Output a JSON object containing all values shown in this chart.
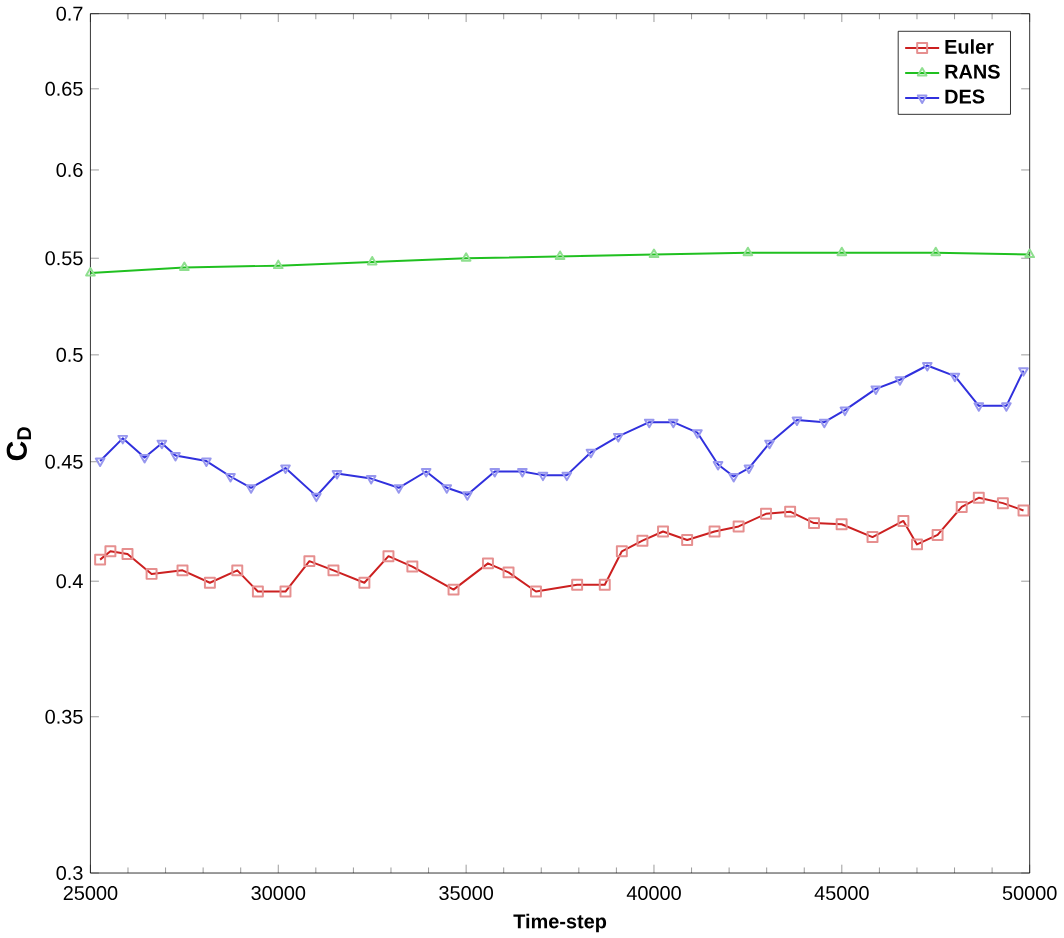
{
  "chart_data": {
    "type": "line",
    "xlabel": "Time-step",
    "ylabel": "**C$_{D}$**",
    "log": "y",
    "xlim": [
      25000,
      50000
    ],
    "ylim": [
      0.3,
      0.7
    ],
    "xticks": [
      25000,
      30000,
      35000,
      40000,
      45000,
      50000
    ],
    "yticks": [
      0.3,
      0.35,
      0.4,
      0.45,
      0.5,
      0.55,
      0.6,
      0.65,
      0.7
    ],
    "legend": "top right",
    "grid": false,
    "series": [
      {
        "name": "Euler",
        "color": "#cc2020",
        "marker": "square",
        "x": [
          25258,
          25532,
          25987,
          26628,
          27451,
          28180,
          28909,
          29457,
          30192,
          30828,
          31469,
          32292,
          32933,
          33569,
          34665,
          35581,
          36129,
          36859,
          37955,
          38690,
          39145,
          39693,
          40241,
          40883,
          41612,
          42253,
          42982,
          43624,
          44260,
          44995,
          45817,
          46639,
          47001,
          47549,
          48191,
          48646,
          49287,
          49836
        ],
        "values": [
          0.4086,
          0.412,
          0.4109,
          0.4029,
          0.4043,
          0.3995,
          0.4043,
          0.396,
          0.396,
          0.408,
          0.4043,
          0.3995,
          0.41,
          0.4058,
          0.3968,
          0.4071,
          0.4035,
          0.396,
          0.3987,
          0.3987,
          0.412,
          0.4163,
          0.4201,
          0.4166,
          0.4201,
          0.4222,
          0.4275,
          0.4284,
          0.4236,
          0.4231,
          0.4178,
          0.4245,
          0.4148,
          0.4187,
          0.4304,
          0.4343,
          0.432,
          0.4289
        ]
      },
      {
        "name": "RANS",
        "color": "#20c020",
        "marker": "triangle",
        "x": [
          25000,
          27500,
          30000,
          32500,
          35000,
          37500,
          40000,
          42500,
          45000,
          47500,
          50000
        ],
        "values": [
          0.542,
          0.545,
          0.546,
          0.548,
          0.55,
          0.551,
          0.552,
          0.553,
          0.553,
          0.553,
          0.552
        ]
      },
      {
        "name": "DES",
        "color": "#3030dd",
        "marker": "triangle down",
        "x": [
          25258,
          25861,
          26442,
          26902,
          27264,
          28087,
          28728,
          29276,
          30192,
          31014,
          31563,
          32473,
          33207,
          33936,
          34485,
          35033,
          35762,
          36497,
          37045,
          37681,
          38322,
          39051,
          39874,
          40515,
          41157,
          41705,
          42122,
          42527,
          43076,
          43805,
          44534,
          45082,
          45905,
          46546,
          47275,
          48010,
          48646,
          49380,
          49836
        ],
        "values": [
          0.4503,
          0.4605,
          0.4519,
          0.4583,
          0.4528,
          0.4503,
          0.4435,
          0.4386,
          0.4472,
          0.435,
          0.4448,
          0.4426,
          0.4386,
          0.4457,
          0.4386,
          0.4356,
          0.4457,
          0.4457,
          0.4441,
          0.4441,
          0.4542,
          0.4614,
          0.4679,
          0.4679,
          0.4631,
          0.4488,
          0.4435,
          0.4472,
          0.4583,
          0.4689,
          0.4679,
          0.4735,
          0.4835,
          0.4879,
          0.4948,
          0.4896,
          0.4755,
          0.4755,
          0.4923
        ]
      }
    ]
  }
}
